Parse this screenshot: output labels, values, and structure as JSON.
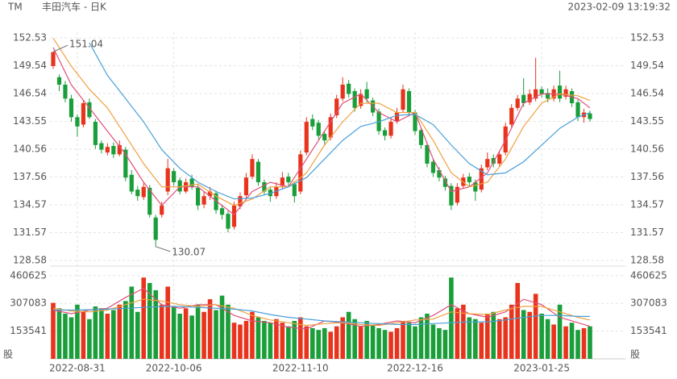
{
  "chart_data": {
    "type": "candlestick",
    "symbol": "TM",
    "title": "丰田汽车 - 日K",
    "timestamp": "2023-02-09 13:19:32",
    "up_color": "#e8341c",
    "down_color": "#1a9e3a",
    "ylim": [
      128.58,
      152.53
    ],
    "yticks": [
      152.53,
      149.54,
      146.54,
      143.55,
      140.56,
      137.56,
      134.57,
      131.57,
      128.58
    ],
    "open": [
      149.5,
      148.3,
      147.5,
      146.0,
      144.0,
      143.2,
      145.6,
      143.5,
      141.2,
      140.2,
      140.9,
      140.0,
      140.5,
      137.8,
      136.2,
      135.4,
      136.4,
      133.2,
      133.5,
      136.0,
      138.2,
      137.2,
      136.0,
      137.4,
      136.4,
      134.6,
      135.5,
      135.8,
      134.2,
      133.6,
      132.2,
      134.4,
      135.6,
      137.6,
      139.2,
      137.0,
      136.2,
      135.5,
      136.6,
      137.6,
      136.8,
      136.0,
      140.2,
      143.8,
      143.4,
      142.2,
      141.8,
      144.2,
      146.0,
      147.6,
      146.8,
      145.2,
      147.0,
      145.8,
      144.6,
      142.6,
      142.0,
      143.6,
      144.8,
      146.8,
      144.5,
      142.6,
      141.0,
      139.2,
      138.3,
      137.4,
      136.6,
      134.8,
      136.6,
      137.6,
      137.0,
      136.2,
      138.6,
      139.6,
      139.0,
      140.2,
      143.2,
      145.0,
      146.4,
      145.6,
      146.0,
      147.0,
      146.6,
      146.0,
      147.4,
      146.2,
      146.8,
      145.6,
      144.0,
      144.4
    ],
    "high": [
      151.04,
      148.6,
      147.9,
      146.4,
      144.3,
      145.8,
      146.0,
      143.8,
      141.5,
      141.2,
      141.3,
      141.5,
      140.8,
      138.3,
      136.6,
      136.9,
      136.7,
      133.5,
      134.9,
      139.5,
      138.5,
      137.5,
      137.4,
      137.8,
      136.7,
      136.0,
      136.5,
      136.1,
      134.6,
      133.9,
      134.9,
      135.9,
      138.0,
      140.0,
      139.5,
      137.3,
      136.5,
      137.0,
      138.1,
      138.0,
      137.1,
      140.4,
      144.0,
      144.3,
      143.7,
      142.5,
      144.4,
      146.4,
      148.3,
      148.0,
      147.1,
      147.0,
      147.8,
      146.1,
      144.9,
      142.9,
      143.9,
      145.0,
      147.5,
      147.1,
      144.8,
      142.9,
      141.3,
      139.5,
      138.6,
      137.7,
      136.9,
      136.9,
      137.9,
      138.0,
      137.3,
      138.9,
      140.2,
      140.0,
      140.4,
      143.4,
      145.4,
      146.4,
      148.2,
      147.0,
      150.4,
      147.3,
      147.1,
      147.4,
      149.0,
      147.4,
      147.1,
      145.9,
      144.9,
      144.7
    ],
    "low": [
      149.2,
      146.8,
      145.6,
      143.5,
      141.9,
      142.9,
      143.8,
      140.6,
      140.1,
      139.9,
      139.6,
      139.8,
      137.1,
      135.7,
      135.0,
      135.1,
      133.2,
      130.07,
      133.2,
      135.6,
      136.6,
      135.7,
      135.8,
      136.2,
      134.0,
      134.2,
      135.1,
      133.6,
      133.0,
      131.6,
      131.9,
      134.1,
      135.3,
      137.3,
      136.6,
      135.6,
      134.9,
      135.2,
      136.3,
      136.6,
      134.8,
      135.7,
      139.9,
      142.6,
      141.6,
      141.0,
      141.5,
      143.9,
      145.7,
      146.1,
      144.6,
      144.9,
      145.6,
      144.1,
      142.1,
      141.5,
      141.7,
      143.3,
      144.5,
      144.1,
      142.1,
      140.6,
      138.6,
      137.6,
      137.1,
      136.1,
      134.0,
      134.5,
      136.3,
      136.6,
      135.0,
      135.9,
      138.3,
      138.6,
      138.7,
      139.9,
      142.9,
      144.7,
      145.1,
      145.3,
      145.7,
      146.1,
      145.6,
      145.7,
      145.6,
      145.9,
      145.1,
      143.6,
      143.4,
      143.5
    ],
    "close": [
      151.0,
      147.5,
      146.0,
      144.0,
      143.0,
      145.5,
      144.0,
      141.0,
      140.5,
      140.8,
      140.0,
      141.0,
      137.5,
      136.0,
      135.5,
      136.5,
      133.5,
      130.8,
      134.5,
      138.5,
      137.0,
      136.0,
      137.0,
      136.5,
      134.5,
      135.5,
      136.0,
      134.0,
      133.5,
      132.0,
      134.5,
      135.5,
      137.5,
      139.5,
      137.0,
      136.0,
      135.5,
      136.5,
      137.5,
      137.0,
      135.5,
      140.0,
      143.5,
      143.0,
      142.0,
      141.5,
      144.0,
      146.0,
      147.5,
      146.5,
      145.0,
      146.5,
      146.0,
      144.5,
      142.5,
      142.0,
      143.5,
      144.5,
      147.0,
      144.5,
      142.5,
      141.0,
      139.0,
      138.0,
      137.5,
      136.5,
      134.5,
      136.5,
      137.5,
      137.0,
      136.0,
      138.5,
      139.5,
      139.0,
      140.0,
      143.0,
      145.0,
      146.0,
      145.5,
      146.5,
      147.0,
      146.5,
      146.0,
      147.0,
      146.0,
      147.0,
      145.5,
      144.0,
      144.5,
      143.8
    ],
    "x_labels": [
      {
        "index": 4,
        "label": "2022-08-31"
      },
      {
        "index": 20,
        "label": "2022-10-06"
      },
      {
        "index": 41,
        "label": "2022-11-10"
      },
      {
        "index": 60,
        "label": "2022-12-16"
      },
      {
        "index": 81,
        "label": "2023-01-25"
      }
    ],
    "ma_index": [
      0,
      3,
      6,
      9,
      12,
      15,
      18,
      21,
      24,
      27,
      30,
      33,
      36,
      39,
      42,
      45,
      48,
      51,
      54,
      57,
      60,
      63,
      66,
      69,
      72,
      75,
      78,
      81,
      84,
      87,
      89
    ],
    "ma": [
      {
        "color": "#e0507a",
        "values": [
          151.5,
          147.5,
          145,
          142.5,
          140,
          137,
          134.5,
          136.5,
          136.5,
          135,
          133.5,
          136,
          137,
          136.5,
          139.5,
          142.5,
          145.5,
          146.5,
          144.5,
          143.5,
          144.5,
          139.5,
          136,
          136.5,
          138,
          141.5,
          145.5,
          146.5,
          146.5,
          146,
          145
        ]
      },
      {
        "color": "#f0a040",
        "values": [
          152.5,
          149.5,
          147,
          145,
          142,
          139,
          136.5,
          136.5,
          136.8,
          135.5,
          134.5,
          135.2,
          136.5,
          136.5,
          138,
          141,
          143.5,
          145.5,
          145.5,
          144.5,
          144.5,
          141.5,
          138,
          136.5,
          137,
          139.5,
          143,
          145.5,
          146.5,
          146.3,
          145.8
        ]
      },
      {
        "color": "#4aa0d8",
        "values": [
          null,
          null,
          152,
          148.5,
          146,
          143.5,
          140.5,
          138.5,
          137,
          136,
          135.2,
          135.3,
          135.8,
          136.5,
          137.5,
          139.5,
          141.5,
          143,
          143.5,
          144.2,
          144.3,
          143.2,
          141,
          139,
          137.8,
          138,
          139.2,
          141,
          142.8,
          144,
          144.5
        ]
      }
    ],
    "volume": {
      "unit": "股",
      "ylim": [
        0,
        500000
      ],
      "yticks": [
        153541,
        307083,
        460625
      ],
      "values": [
        310000,
        280000,
        250000,
        230000,
        300000,
        260000,
        220000,
        290000,
        280000,
        250000,
        270000,
        300000,
        320000,
        400000,
        260000,
        450000,
        420000,
        380000,
        300000,
        400000,
        290000,
        250000,
        280000,
        240000,
        300000,
        260000,
        330000,
        270000,
        350000,
        300000,
        200000,
        190000,
        210000,
        260000,
        230000,
        210000,
        200000,
        220000,
        200000,
        180000,
        210000,
        230000,
        180000,
        170000,
        160000,
        170000,
        150000,
        180000,
        230000,
        260000,
        220000,
        180000,
        210000,
        190000,
        170000,
        160000,
        150000,
        170000,
        210000,
        200000,
        180000,
        230000,
        250000,
        190000,
        170000,
        160000,
        450000,
        280000,
        300000,
        230000,
        220000,
        200000,
        250000,
        260000,
        220000,
        230000,
        300000,
        420000,
        270000,
        260000,
        360000,
        250000,
        220000,
        190000,
        300000,
        180000,
        200000,
        160000,
        170000,
        180000
      ],
      "ma": [
        {
          "color": "#e0507a",
          "values": [
            270000,
            250000,
            270000,
            280000,
            340000,
            390000,
            300000,
            280000,
            300000,
            300000,
            240000,
            210000,
            200000,
            175000,
            165000,
            210000,
            200000,
            180000,
            190000,
            210000,
            200000,
            240000,
            300000,
            250000,
            230000,
            260000,
            330000,
            300000,
            230000,
            200000,
            180000
          ]
        },
        {
          "color": "#f0a040",
          "values": [
            280000,
            265000,
            260000,
            270000,
            300000,
            330000,
            320000,
            300000,
            290000,
            300000,
            280000,
            240000,
            215000,
            200000,
            185000,
            195000,
            200000,
            190000,
            185000,
            200000,
            215000,
            220000,
            260000,
            250000,
            245000,
            270000,
            290000,
            290000,
            260000,
            230000,
            215000
          ]
        },
        {
          "color": "#4aa0d8",
          "values": [
            270000,
            270000,
            272000,
            275000,
            280000,
            285000,
            290000,
            290000,
            285000,
            280000,
            275000,
            265000,
            245000,
            230000,
            220000,
            210000,
            205000,
            200000,
            195000,
            190000,
            190000,
            195000,
            200000,
            205000,
            205000,
            215000,
            230000,
            240000,
            240000,
            235000,
            235000
          ]
        }
      ]
    }
  }
}
